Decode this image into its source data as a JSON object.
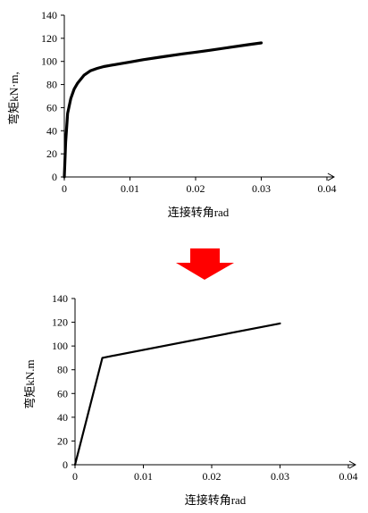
{
  "chart_data": [
    {
      "type": "line",
      "xlabel": "连接转角rad",
      "ylabel": "弯矩kN·m,",
      "xlim": [
        0,
        0.04
      ],
      "ylim": [
        0,
        140
      ],
      "xticks": [
        "0",
        "0.01",
        "0.02",
        "0.03",
        "0.04"
      ],
      "yticks": [
        "0",
        "20",
        "40",
        "60",
        "80",
        "100",
        "120",
        "140"
      ],
      "grid": false,
      "series": [
        {
          "x": [
            0,
            0.0002,
            0.0005,
            0.001,
            0.0015,
            0.002,
            0.003,
            0.004,
            0.005,
            0.006,
            0.007,
            0.008,
            0.009,
            0.01,
            0.012,
            0.015,
            0.018,
            0.02,
            0.022,
            0.025,
            0.028,
            0.03
          ],
          "y": [
            0,
            30,
            55,
            68,
            76,
            81,
            88,
            92,
            94,
            95.5,
            96.5,
            97.5,
            98.5,
            99.5,
            101.5,
            104,
            106.5,
            108,
            109.5,
            112,
            114.5,
            116
          ]
        }
      ]
    },
    {
      "type": "line",
      "xlabel": "连接转角rad",
      "ylabel": "弯矩kN.m",
      "xlim": [
        0,
        0.04
      ],
      "ylim": [
        0,
        140
      ],
      "xticks": [
        "0",
        "0.01",
        "0.02",
        "0.03",
        "0.04"
      ],
      "yticks": [
        "0",
        "20",
        "40",
        "60",
        "80",
        "100",
        "120",
        "140"
      ],
      "grid": false,
      "series": [
        {
          "x": [
            0,
            0.004,
            0.03
          ],
          "y": [
            0,
            90,
            119
          ]
        }
      ]
    }
  ],
  "arrow": {
    "direction": "down",
    "color": "#ff0000"
  }
}
